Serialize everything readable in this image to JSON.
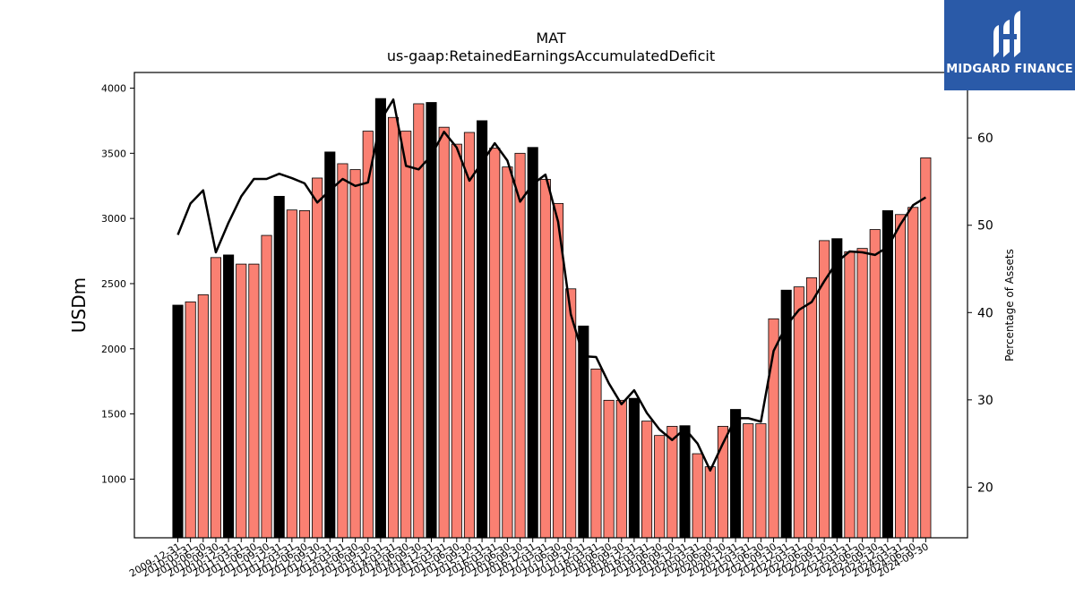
{
  "brand": {
    "name": "MIDGARD FINANCE",
    "bg": "#2a5aa8"
  },
  "chart_data": {
    "type": "bar",
    "title": "MAT",
    "subtitle": "us-gaap:RetainedEarningsAccumulatedDeficit",
    "ylabel": "USDm",
    "y2label": "Percentage of Assets",
    "ylim": [
      550,
      4120
    ],
    "y2lim": [
      14.2,
      67.5
    ],
    "yticks": [
      1000,
      1500,
      2000,
      2500,
      3000,
      3500,
      4000
    ],
    "y2ticks": [
      20,
      30,
      40,
      50,
      60
    ],
    "colors": {
      "q4_bar": "#000000",
      "other_bar": "#fa8072",
      "line": "#000000"
    },
    "categories": [
      "2009-12-31",
      "2010-03-31",
      "2010-06-30",
      "2010-09-30",
      "2010-12-31",
      "2011-03-31",
      "2011-06-30",
      "2011-09-30",
      "2011-12-31",
      "2012-03-31",
      "2012-06-30",
      "2012-09-30",
      "2012-12-31",
      "2013-03-31",
      "2013-06-30",
      "2013-09-30",
      "2013-12-31",
      "2014-03-31",
      "2014-06-30",
      "2014-09-30",
      "2014-12-31",
      "2015-03-31",
      "2015-06-30",
      "2015-09-30",
      "2015-12-31",
      "2016-03-31",
      "2016-06-30",
      "2016-09-30",
      "2016-12-31",
      "2017-03-31",
      "2017-06-30",
      "2017-09-30",
      "2017-12-31",
      "2018-03-31",
      "2018-06-30",
      "2018-09-30",
      "2018-12-31",
      "2019-03-31",
      "2019-06-30",
      "2019-09-30",
      "2019-12-31",
      "2020-03-31",
      "2020-06-30",
      "2020-09-30",
      "2020-12-31",
      "2021-03-31",
      "2021-06-30",
      "2021-09-30",
      "2021-12-31",
      "2022-03-31",
      "2022-06-30",
      "2022-09-30",
      "2022-12-31",
      "2023-03-31",
      "2023-06-30",
      "2023-09-30",
      "2023-12-31",
      "2024-03-31",
      "2024-06-30",
      "2024-09-30"
    ],
    "series": [
      {
        "kind": "bar",
        "values": [
          2335,
          2360,
          2415,
          2700,
          2720,
          2650,
          2650,
          2870,
          3170,
          3065,
          3060,
          3310,
          3510,
          3420,
          3375,
          3670,
          3920,
          3775,
          3670,
          3880,
          3890,
          3700,
          3570,
          3660,
          3750,
          3540,
          3395,
          3500,
          3545,
          3300,
          3115,
          2460,
          2175,
          1845,
          1605,
          1605,
          1620,
          1445,
          1335,
          1405,
          1410,
          1195,
          1095,
          1405,
          1535,
          1425,
          1425,
          2230,
          2450,
          2475,
          2545,
          2830,
          2845,
          2745,
          2770,
          2915,
          3060,
          3030,
          3085,
          3465
        ]
      },
      {
        "kind": "line",
        "axis": "right",
        "values": [
          48.9,
          52.5,
          54.0,
          46.9,
          50.3,
          53.3,
          55.3,
          55.3,
          55.9,
          55.4,
          54.8,
          52.6,
          54.0,
          55.3,
          54.5,
          54.9,
          62.0,
          64.4,
          56.8,
          56.4,
          58.0,
          60.7,
          58.9,
          55.1,
          57.2,
          59.4,
          57.4,
          52.7,
          54.7,
          55.8,
          50.4,
          39.8,
          35.0,
          34.9,
          31.9,
          29.5,
          31.1,
          28.5,
          26.6,
          25.4,
          26.7,
          25.0,
          21.9,
          25.0,
          27.9,
          27.9,
          27.5,
          35.6,
          38.5,
          40.3,
          41.2,
          43.6,
          45.8,
          47.0,
          46.9,
          46.6,
          47.5,
          50.1,
          52.3,
          53.2
        ]
      }
    ]
  }
}
